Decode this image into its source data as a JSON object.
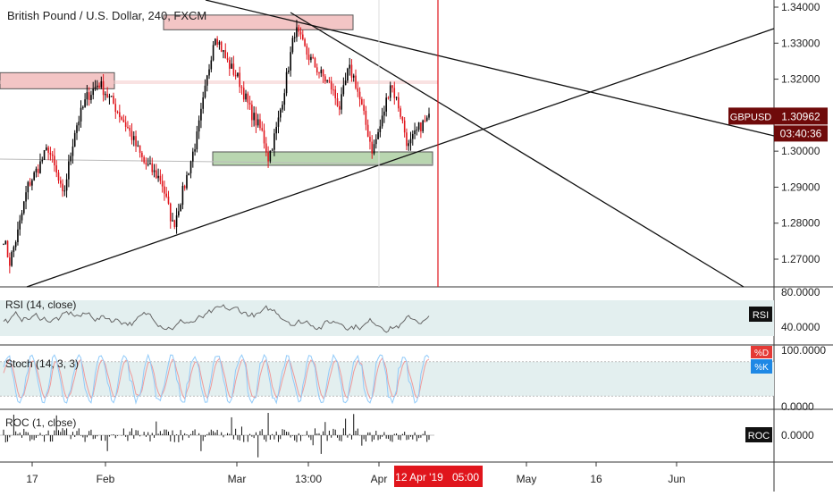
{
  "header": {
    "symbol_title": "British Pound / U.S. Dollar, 240, FXCM"
  },
  "colors": {
    "candle_up": "#000000",
    "candle_down": "#e0151c",
    "rsi_band": "#e3efef",
    "stoch_band": "#e3efef",
    "price_badge": "#6f0a0a",
    "vertical_marker": "#e0151c",
    "stoch_d": "#ef9a9a",
    "stoch_k": "#90caf9",
    "oscillator": "#333333",
    "zone_red": "#f3c5c5",
    "zone_green": "#b9d6b0"
  },
  "chart_data": [
    {
      "type": "candlestick",
      "title": "British Pound / U.S. Dollar, 240, FXCM",
      "symbol": "GBPUSD",
      "last_price": "1.30962",
      "countdown": "03:40:36",
      "ylim": [
        1.26,
        1.34
      ],
      "y_ticks": [
        "1.34000",
        "1.33000",
        "1.32000",
        "1.31000",
        "1.30000",
        "1.29000",
        "1.28000",
        "1.27000"
      ],
      "x_ticks": [
        "17",
        "Feb",
        "Mar",
        "13:00",
        "Apr",
        "May",
        "16",
        "Jun"
      ],
      "x_highlight": "12 Apr '19",
      "x_highlight_time": "05:00",
      "grid": false,
      "candle_path": [
        {
          "t": 0,
          "p": 1.276
        },
        {
          "t": 2,
          "p": 1.269
        },
        {
          "t": 5,
          "p": 1.278
        },
        {
          "t": 8,
          "p": 1.29
        },
        {
          "t": 12,
          "p": 1.296
        },
        {
          "t": 15,
          "p": 1.301
        },
        {
          "t": 18,
          "p": 1.293
        },
        {
          "t": 20,
          "p": 1.287
        },
        {
          "t": 24,
          "p": 1.306
        },
        {
          "t": 28,
          "p": 1.315
        },
        {
          "t": 32,
          "p": 1.319
        },
        {
          "t": 37,
          "p": 1.313
        },
        {
          "t": 42,
          "p": 1.306
        },
        {
          "t": 47,
          "p": 1.297
        },
        {
          "t": 53,
          "p": 1.292
        },
        {
          "t": 57,
          "p": 1.279
        },
        {
          "t": 61,
          "p": 1.291
        },
        {
          "t": 65,
          "p": 1.304
        },
        {
          "t": 68,
          "p": 1.318
        },
        {
          "t": 71,
          "p": 1.333
        },
        {
          "t": 75,
          "p": 1.325
        },
        {
          "t": 79,
          "p": 1.32
        },
        {
          "t": 83,
          "p": 1.311
        },
        {
          "t": 87,
          "p": 1.305
        },
        {
          "t": 89,
          "p": 1.298
        },
        {
          "t": 92,
          "p": 1.307
        },
        {
          "t": 95,
          "p": 1.32
        },
        {
          "t": 98,
          "p": 1.334
        },
        {
          "t": 102,
          "p": 1.327
        },
        {
          "t": 106,
          "p": 1.322
        },
        {
          "t": 110,
          "p": 1.318
        },
        {
          "t": 113,
          "p": 1.312
        },
        {
          "t": 116,
          "p": 1.323
        },
        {
          "t": 118,
          "p": 1.32
        },
        {
          "t": 121,
          "p": 1.31
        },
        {
          "t": 124,
          "p": 1.3
        },
        {
          "t": 127,
          "p": 1.308
        },
        {
          "t": 130,
          "p": 1.319
        },
        {
          "t": 133,
          "p": 1.312
        },
        {
          "t": 136,
          "p": 1.301
        },
        {
          "t": 140,
          "p": 1.307
        },
        {
          "t": 143,
          "p": 1.309
        }
      ],
      "annotations": [
        {
          "label": "upper resistance zone",
          "type": "zone",
          "color": "zone_red"
        },
        {
          "label": "left resistance zone",
          "type": "zone",
          "color": "zone_red"
        },
        {
          "label": "support zone",
          "type": "zone",
          "color": "zone_green"
        },
        {
          "label": "descending trendlines",
          "type": "lines"
        },
        {
          "label": "ascending trendline",
          "type": "line"
        }
      ]
    },
    {
      "type": "line",
      "indicator": "RSI (14, close)",
      "badge": "RSI",
      "ylim": [
        20,
        85
      ],
      "band": [
        30,
        70
      ],
      "y_ticks": [
        "80.0000",
        "40.0000"
      ]
    },
    {
      "type": "line",
      "indicator": "Stoch (14, 3, 3)",
      "badges": [
        "%D",
        "%K"
      ],
      "ylim": [
        0,
        100
      ],
      "band": [
        20,
        80
      ],
      "y_ticks": [
        "100.0000",
        "0.0000"
      ]
    },
    {
      "type": "bar",
      "indicator": "ROC (1, close)",
      "badge": "ROC",
      "y_ticks": [
        "0.0000"
      ]
    }
  ]
}
